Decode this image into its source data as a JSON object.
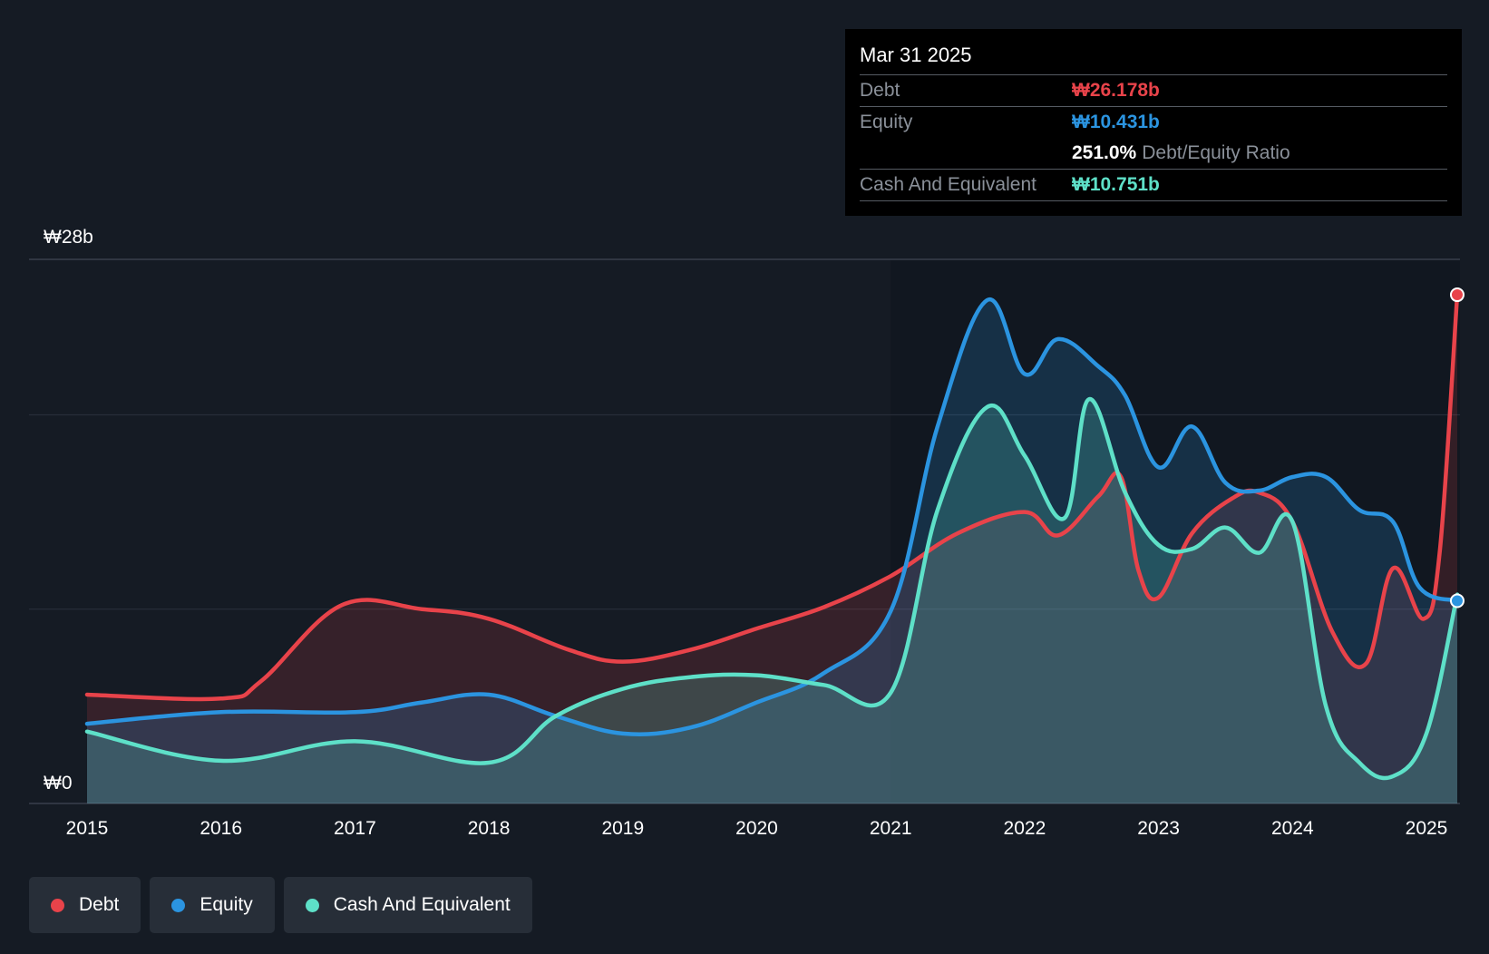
{
  "chart_data": {
    "type": "area",
    "currency_prefix": "₩",
    "y_axis_labels": [
      "₩28b",
      "₩0"
    ],
    "ylim": [
      0,
      28
    ],
    "x_ticks": [
      "2015",
      "2016",
      "2017",
      "2018",
      "2019",
      "2020",
      "2021",
      "2022",
      "2023",
      "2024",
      "2025"
    ],
    "x_range": [
      2015,
      2025.25
    ],
    "series": [
      {
        "name": "Debt",
        "color": "#e8434a",
        "points": [
          [
            2015,
            5.6
          ],
          [
            2016,
            5.4
          ],
          [
            2016.3,
            6.3
          ],
          [
            2016.9,
            10.2
          ],
          [
            2017.5,
            10.0
          ],
          [
            2018,
            9.5
          ],
          [
            2018.6,
            7.9
          ],
          [
            2019,
            7.3
          ],
          [
            2019.5,
            7.9
          ],
          [
            2020,
            9.0
          ],
          [
            2020.5,
            10.1
          ],
          [
            2021,
            11.7
          ],
          [
            2021.5,
            13.9
          ],
          [
            2022,
            15.0
          ],
          [
            2022.25,
            13.8
          ],
          [
            2022.55,
            15.8
          ],
          [
            2022.72,
            16.8
          ],
          [
            2022.85,
            12.0
          ],
          [
            2023,
            10.6
          ],
          [
            2023.25,
            13.9
          ],
          [
            2023.55,
            15.7
          ],
          [
            2023.75,
            16.0
          ],
          [
            2024,
            14.5
          ],
          [
            2024.3,
            8.8
          ],
          [
            2024.55,
            7.2
          ],
          [
            2024.75,
            12.1
          ],
          [
            2024.98,
            9.5
          ],
          [
            2025.1,
            13.0
          ],
          [
            2025.23,
            26.178
          ]
        ]
      },
      {
        "name": "Equity",
        "color": "#2b94e0",
        "points": [
          [
            2015,
            4.1
          ],
          [
            2016,
            4.7
          ],
          [
            2017,
            4.7
          ],
          [
            2017.5,
            5.2
          ],
          [
            2018,
            5.6
          ],
          [
            2018.5,
            4.5
          ],
          [
            2019,
            3.6
          ],
          [
            2019.5,
            3.9
          ],
          [
            2020,
            5.2
          ],
          [
            2020.5,
            6.7
          ],
          [
            2021,
            9.9
          ],
          [
            2021.35,
            19.4
          ],
          [
            2021.72,
            25.9
          ],
          [
            2022,
            22.1
          ],
          [
            2022.25,
            23.9
          ],
          [
            2022.55,
            22.5
          ],
          [
            2022.75,
            21.0
          ],
          [
            2023,
            17.3
          ],
          [
            2023.25,
            19.4
          ],
          [
            2023.5,
            16.5
          ],
          [
            2023.75,
            16.1
          ],
          [
            2024,
            16.8
          ],
          [
            2024.25,
            16.8
          ],
          [
            2024.5,
            15.1
          ],
          [
            2024.75,
            14.5
          ],
          [
            2024.95,
            11.1
          ],
          [
            2025.23,
            10.431
          ]
        ]
      },
      {
        "name": "Cash And Equivalent",
        "color": "#5ee0c8",
        "points": [
          [
            2015,
            3.7
          ],
          [
            2016,
            2.2
          ],
          [
            2017,
            3.2
          ],
          [
            2018,
            2.1
          ],
          [
            2018.5,
            4.5
          ],
          [
            2019,
            5.9
          ],
          [
            2019.5,
            6.5
          ],
          [
            2020,
            6.6
          ],
          [
            2020.5,
            6.1
          ],
          [
            2021,
            5.7
          ],
          [
            2021.35,
            15.1
          ],
          [
            2021.72,
            20.4
          ],
          [
            2022,
            17.9
          ],
          [
            2022.3,
            14.7
          ],
          [
            2022.48,
            20.8
          ],
          [
            2022.75,
            16.0
          ],
          [
            2023,
            13.3
          ],
          [
            2023.25,
            13.1
          ],
          [
            2023.5,
            14.2
          ],
          [
            2023.75,
            12.9
          ],
          [
            2024,
            14.5
          ],
          [
            2024.25,
            5.0
          ],
          [
            2024.5,
            2.1
          ],
          [
            2024.75,
            1.4
          ],
          [
            2025,
            3.6
          ],
          [
            2025.23,
            10.751
          ]
        ]
      }
    ]
  },
  "tooltip": {
    "date": "Mar 31 2025",
    "debt_label": "Debt",
    "debt_value": "₩26.178b",
    "equity_label": "Equity",
    "equity_value": "₩10.431b",
    "ratio_value": "251.0%",
    "ratio_label": "Debt/Equity Ratio",
    "cash_label": "Cash And Equivalent",
    "cash_value": "₩10.751b"
  },
  "legend": {
    "items": [
      {
        "label": "Debt",
        "color": "#e8434a"
      },
      {
        "label": "Equity",
        "color": "#2b94e0"
      },
      {
        "label": "Cash And Equivalent",
        "color": "#5ee0c8"
      }
    ]
  },
  "colors": {
    "debt": "#e8434a",
    "equity": "#2b94e0",
    "cash": "#5ee0c8"
  }
}
